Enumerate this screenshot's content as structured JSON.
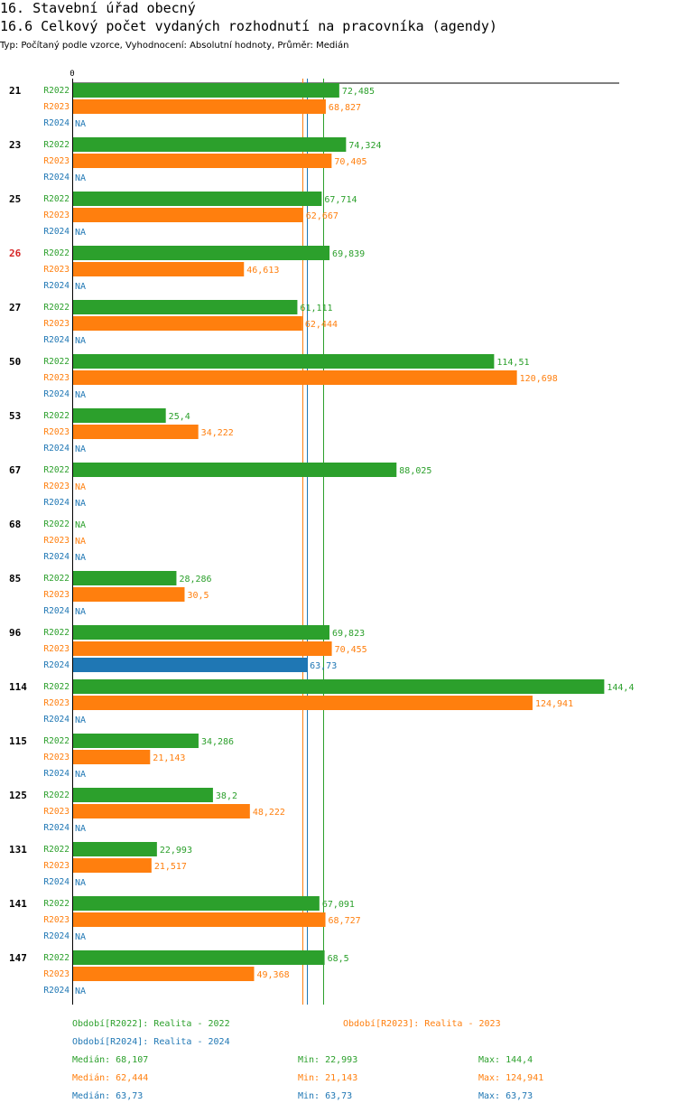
{
  "header": {
    "section_title": "16. Stavební úřad obecný",
    "chart_title": "16.6 Celkový počet vydaných rozhodnutí na pracovníka (agendy)",
    "subtitle": "Typ: Počítaný podle vzorce, Vyhodnocení: Absolutní hodnoty, Průměr: Medián"
  },
  "colors": {
    "R2022": "#2ca02c",
    "R2023": "#ff7f0e",
    "R2024": "#1f77b4",
    "highlight": "#d62728"
  },
  "chart_data": {
    "type": "bar",
    "orientation": "horizontal",
    "x_tick_label": "0",
    "xlim": [
      0,
      147
    ],
    "na_label": "NA",
    "series_names": [
      "R2022",
      "R2023",
      "R2024"
    ],
    "categories": [
      "21",
      "23",
      "25",
      "26",
      "27",
      "50",
      "53",
      "67",
      "68",
      "85",
      "96",
      "114",
      "115",
      "125",
      "131",
      "141",
      "147"
    ],
    "highlighted_category": "26",
    "series": [
      {
        "name": "R2022",
        "values": [
          72.485,
          74.324,
          67.714,
          69.839,
          61.111,
          114.51,
          25.4,
          88.025,
          null,
          28.286,
          69.823,
          144.4,
          34.286,
          38.2,
          22.993,
          67.091,
          68.5
        ],
        "labels": [
          "72,485",
          "74,324",
          "67,714",
          "69,839",
          "61,111",
          "114,51",
          "25,4",
          "88,025",
          "NA",
          "28,286",
          "69,823",
          "144,4",
          "34,286",
          "38,2",
          "22,993",
          "67,091",
          "68,5"
        ]
      },
      {
        "name": "R2023",
        "values": [
          68.827,
          70.405,
          62.667,
          46.613,
          62.444,
          120.698,
          34.222,
          null,
          null,
          30.5,
          70.455,
          124.941,
          21.143,
          48.222,
          21.517,
          68.727,
          49.368
        ],
        "labels": [
          "68,827",
          "70,405",
          "62,667",
          "46,613",
          "62,444",
          "120,698",
          "34,222",
          "NA",
          "NA",
          "30,5",
          "70,455",
          "124,941",
          "21,143",
          "48,222",
          "21,517",
          "68,727",
          "49,368"
        ]
      },
      {
        "name": "R2024",
        "values": [
          null,
          null,
          null,
          null,
          null,
          null,
          null,
          null,
          null,
          null,
          63.73,
          null,
          null,
          null,
          null,
          null,
          null
        ],
        "labels": [
          "NA",
          "NA",
          "NA",
          "NA",
          "NA",
          "NA",
          "NA",
          "NA",
          "NA",
          "NA",
          "63,73",
          "NA",
          "NA",
          "NA",
          "NA",
          "NA",
          "NA"
        ]
      }
    ],
    "median_lines": [
      {
        "series": "R2022",
        "value": 68.107
      },
      {
        "series": "R2023",
        "value": 62.444
      },
      {
        "series": "R2024",
        "value": 63.73
      }
    ]
  },
  "legend": {
    "r2022": "Období[R2022]: Realita - 2022",
    "r2023": "Období[R2023]: Realita - 2023",
    "r2024": "Období[R2024]: Realita - 2024"
  },
  "stats": [
    {
      "series": "R2022",
      "median": "Medián: 68,107",
      "min": "Min: 22,993",
      "max": "Max: 144,4"
    },
    {
      "series": "R2023",
      "median": "Medián: 62,444",
      "min": "Min: 21,143",
      "max": "Max: 124,941"
    },
    {
      "series": "R2024",
      "median": "Medián: 63,73",
      "min": "Min: 63,73",
      "max": "Max: 63,73"
    }
  ]
}
